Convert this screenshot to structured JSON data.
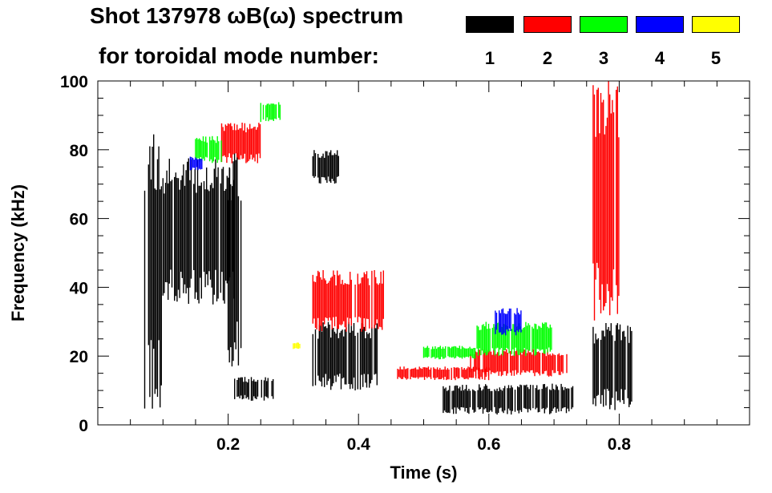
{
  "chart_data": {
    "type": "heatmap",
    "title": "Shot 137978 ωB(ω) spectrum",
    "subtitle": "for toroidal mode number:",
    "xlabel": "Time (s)",
    "ylabel": "Frequency (kHz)",
    "xlim": [
      0.0,
      1.0
    ],
    "ylim": [
      0,
      100
    ],
    "xticks": [
      0.2,
      0.4,
      0.6,
      0.8
    ],
    "xtick_labels": [
      "0.2",
      "0.4",
      "0.6",
      "0.8"
    ],
    "yticks": [
      0,
      20,
      40,
      60,
      80,
      100
    ],
    "ytick_labels": [
      "0",
      "20",
      "40",
      "60",
      "80",
      "100"
    ],
    "legend": [
      {
        "label": "1",
        "color": "#000000"
      },
      {
        "label": "2",
        "color": "#ff0000"
      },
      {
        "label": "3",
        "color": "#00ff00"
      },
      {
        "label": "4",
        "color": "#0000ff"
      },
      {
        "label": "5",
        "color": "#ffff00"
      }
    ],
    "series": [
      {
        "name": "1",
        "color": "#000000",
        "regions": [
          {
            "t": [
              0.07,
              0.1
            ],
            "f": [
              4,
              88
            ]
          },
          {
            "t": [
              0.1,
              0.21
            ],
            "f": [
              35,
              78
            ]
          },
          {
            "t": [
              0.2,
              0.22
            ],
            "f": [
              14,
              80
            ]
          },
          {
            "t": [
              0.21,
              0.27
            ],
            "f": [
              7,
              14
            ]
          },
          {
            "t": [
              0.33,
              0.37
            ],
            "f": [
              70,
              80
            ]
          },
          {
            "t": [
              0.33,
              0.43
            ],
            "f": [
              10,
              30
            ]
          },
          {
            "t": [
              0.53,
              0.73
            ],
            "f": [
              3,
              12
            ]
          },
          {
            "t": [
              0.76,
              0.82
            ],
            "f": [
              4,
              30
            ]
          }
        ]
      },
      {
        "name": "2",
        "color": "#ff0000",
        "regions": [
          {
            "t": [
              0.19,
              0.25
            ],
            "f": [
              76,
              88
            ]
          },
          {
            "t": [
              0.33,
              0.44
            ],
            "f": [
              27,
              45
            ]
          },
          {
            "t": [
              0.46,
              0.6
            ],
            "f": [
              13,
              17
            ]
          },
          {
            "t": [
              0.57,
              0.72
            ],
            "f": [
              14,
              22
            ]
          },
          {
            "t": [
              0.76,
              0.8
            ],
            "f": [
              30,
              100
            ]
          }
        ]
      },
      {
        "name": "3",
        "color": "#00ff00",
        "regions": [
          {
            "t": [
              0.15,
              0.19
            ],
            "f": [
              76,
              84
            ]
          },
          {
            "t": [
              0.25,
              0.28
            ],
            "f": [
              88,
              94
            ]
          },
          {
            "t": [
              0.5,
              0.58
            ],
            "f": [
              19,
              23
            ]
          },
          {
            "t": [
              0.58,
              0.7
            ],
            "f": [
              20,
              30
            ]
          }
        ]
      },
      {
        "name": "4",
        "color": "#0000ff",
        "regions": [
          {
            "t": [
              0.14,
              0.16
            ],
            "f": [
              74,
              78
            ]
          },
          {
            "t": [
              0.61,
              0.65
            ],
            "f": [
              26,
              34
            ]
          }
        ]
      },
      {
        "name": "5",
        "color": "#ffff00",
        "regions": [
          {
            "t": [
              0.3,
              0.31
            ],
            "f": [
              22,
              24
            ]
          }
        ]
      }
    ]
  }
}
